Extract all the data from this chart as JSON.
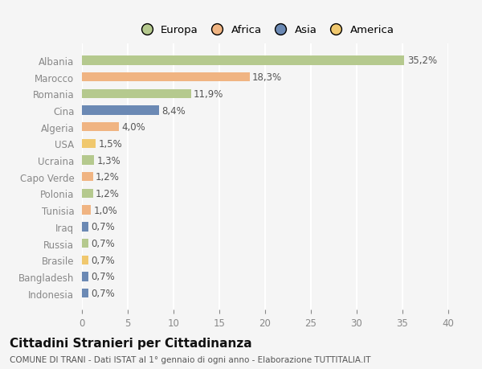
{
  "categories": [
    "Albania",
    "Marocco",
    "Romania",
    "Cina",
    "Algeria",
    "USA",
    "Ucraina",
    "Capo Verde",
    "Polonia",
    "Tunisia",
    "Iraq",
    "Russia",
    "Brasile",
    "Bangladesh",
    "Indonesia"
  ],
  "values": [
    35.2,
    18.3,
    11.9,
    8.4,
    4.0,
    1.5,
    1.3,
    1.2,
    1.2,
    1.0,
    0.7,
    0.7,
    0.7,
    0.7,
    0.7
  ],
  "labels": [
    "35,2%",
    "18,3%",
    "11,9%",
    "8,4%",
    "4,0%",
    "1,5%",
    "1,3%",
    "1,2%",
    "1,2%",
    "1,0%",
    "0,7%",
    "0,7%",
    "0,7%",
    "0,7%",
    "0,7%"
  ],
  "colors": [
    "#b5c98e",
    "#f0b482",
    "#b5c98e",
    "#6b89b4",
    "#f0b482",
    "#f0c86e",
    "#b5c98e",
    "#f0b482",
    "#b5c98e",
    "#f0b482",
    "#6b89b4",
    "#b5c98e",
    "#f0c86e",
    "#6b89b4",
    "#6b89b4"
  ],
  "legend_labels": [
    "Europa",
    "Africa",
    "Asia",
    "America"
  ],
  "legend_colors": [
    "#b5c98e",
    "#f0b482",
    "#6b89b4",
    "#f0c86e"
  ],
  "xlim": [
    0,
    40
  ],
  "xticks": [
    0,
    5,
    10,
    15,
    20,
    25,
    30,
    35,
    40
  ],
  "title": "Cittadini Stranieri per Cittadinanza",
  "subtitle": "COMUNE DI TRANI - Dati ISTAT al 1° gennaio di ogni anno - Elaborazione TUTTITALIA.IT",
  "bg_color": "#f5f5f5",
  "grid_color": "#ffffff",
  "bar_height": 0.55,
  "label_fontsize": 8.5,
  "tick_fontsize": 8.5,
  "title_fontsize": 11,
  "subtitle_fontsize": 7.5
}
